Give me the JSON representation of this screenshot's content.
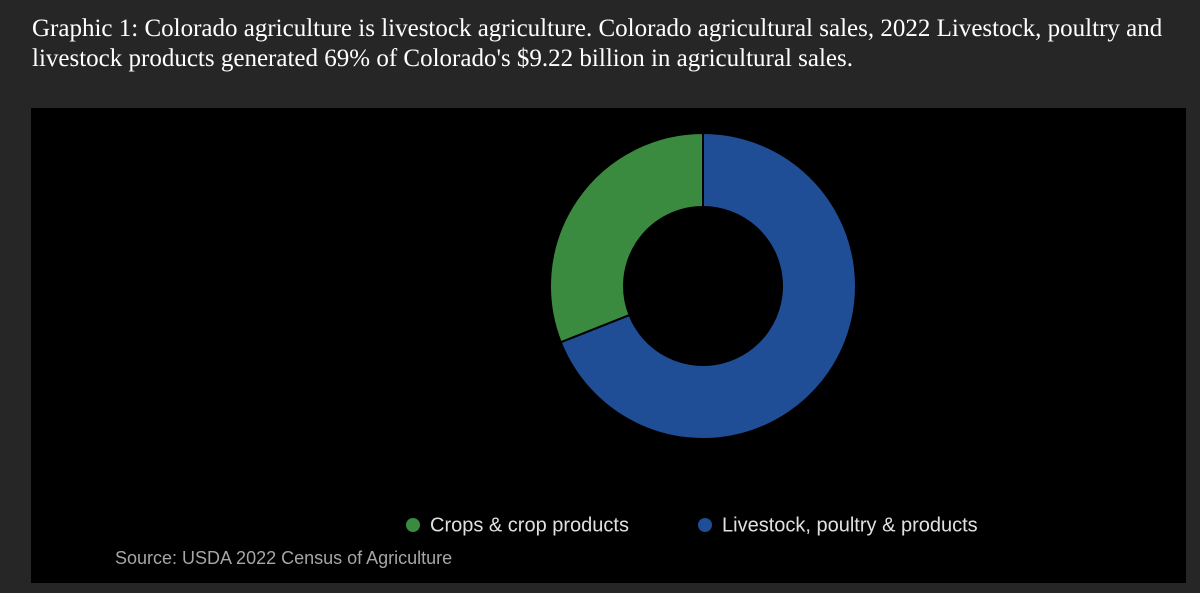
{
  "chart_data": {
    "type": "pie",
    "donut": true,
    "title": "Graphic 1: Colorado agriculture is livestock agriculture. Colorado agricultural sales, 2022 Livestock, poultry and livestock products generated 69% of Colorado's $9.22 billion in agricultural sales.",
    "categories": [
      "Crops & crop products",
      "Livestock, poultry & products"
    ],
    "values": [
      31,
      69
    ],
    "colors": [
      "#3a8a3f",
      "#1f4e96"
    ],
    "legend": "bottom",
    "source": "Source: USDA 2022 Census of Agriculture"
  }
}
